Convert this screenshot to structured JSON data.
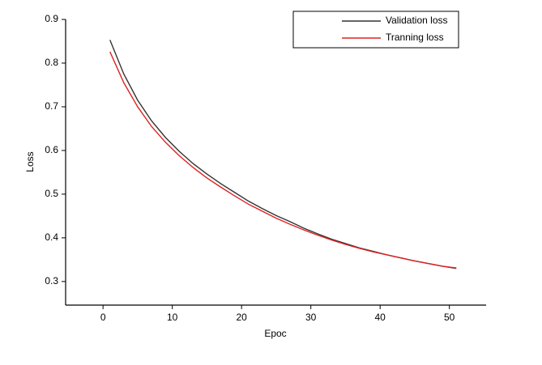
{
  "chart_data": {
    "type": "line",
    "xlabel": "Epoc",
    "ylabel": "Loss",
    "x": [
      1,
      3,
      5,
      7,
      9,
      11,
      13,
      15,
      17,
      19,
      21,
      23,
      25,
      27,
      29,
      31,
      33,
      35,
      37,
      39,
      41,
      43,
      45,
      47,
      49,
      51
    ],
    "series": [
      {
        "name": "Validation loss",
        "color": "#333333",
        "values": [
          0.853,
          0.775,
          0.715,
          0.668,
          0.63,
          0.598,
          0.57,
          0.546,
          0.524,
          0.504,
          0.484,
          0.467,
          0.451,
          0.437,
          0.422,
          0.409,
          0.397,
          0.387,
          0.377,
          0.369,
          0.361,
          0.354,
          0.347,
          0.341,
          0.335,
          0.33
        ]
      },
      {
        "name": "Tranning loss",
        "color": "#e02020",
        "values": [
          0.826,
          0.755,
          0.7,
          0.655,
          0.619,
          0.588,
          0.561,
          0.537,
          0.516,
          0.496,
          0.477,
          0.461,
          0.445,
          0.431,
          0.418,
          0.406,
          0.395,
          0.385,
          0.376,
          0.368,
          0.361,
          0.354,
          0.347,
          0.341,
          0.335,
          0.331
        ]
      }
    ],
    "xlim": [
      -5.4,
      55.3
    ],
    "ylim": [
      0.246,
      0.9
    ],
    "xticks": [
      0,
      10,
      20,
      30,
      40,
      50
    ],
    "yticks": [
      0.3,
      0.4,
      0.5,
      0.6,
      0.7,
      0.8,
      0.9
    ],
    "grid": false,
    "legend": "top-right"
  }
}
